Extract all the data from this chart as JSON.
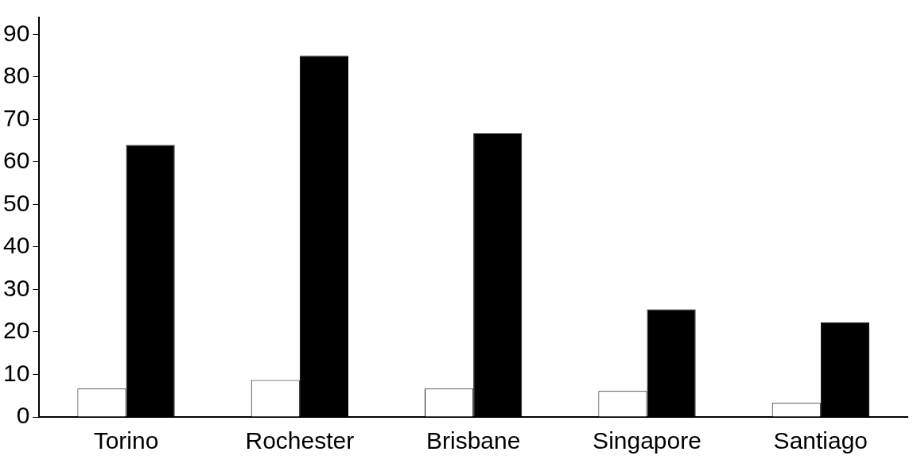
{
  "chart_data": {
    "type": "bar",
    "categories": [
      "Torino",
      "Rochester",
      "Brisbane",
      "Singapore",
      "Santiago"
    ],
    "series": [
      {
        "color": "#ffffff",
        "values": [
          6.7,
          8.7,
          6.7,
          6.1,
          3.3
        ]
      },
      {
        "color": "#000000",
        "values": [
          64,
          85,
          66.7,
          25.3,
          22.3
        ]
      }
    ],
    "ylim": [
      0,
      94
    ],
    "yticks": [
      0,
      10,
      20,
      30,
      40,
      50,
      60,
      70,
      80,
      90
    ],
    "grid": false,
    "legend": false
  }
}
